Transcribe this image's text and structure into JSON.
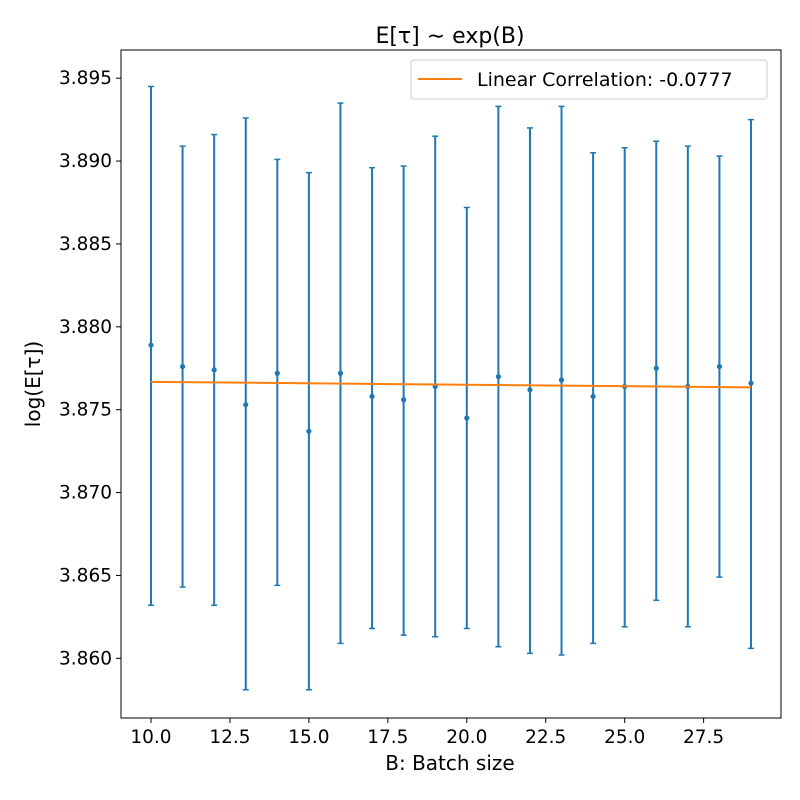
{
  "chart_data": {
    "type": "scatter",
    "title": "E[τ] ∼ exp(B)",
    "xlabel": "B: Batch size",
    "ylabel": "log(E[τ])",
    "xlim": [
      9.05,
      29.95
    ],
    "ylim": [
      3.8564,
      3.8967
    ],
    "x_ticks": [
      10.0,
      12.5,
      15.0,
      17.5,
      20.0,
      22.5,
      25.0,
      27.5
    ],
    "x_tick_labels": [
      "10.0",
      "12.5",
      "15.0",
      "17.5",
      "20.0",
      "22.5",
      "25.0",
      "27.5"
    ],
    "y_ticks": [
      3.86,
      3.865,
      3.87,
      3.875,
      3.88,
      3.885,
      3.89,
      3.895
    ],
    "y_tick_labels": [
      "3.860",
      "3.865",
      "3.870",
      "3.875",
      "3.880",
      "3.885",
      "3.890",
      "3.895"
    ],
    "grid": false,
    "legend_position": "top-right",
    "series": [
      {
        "kind": "errorbar",
        "color": "#1f77b4",
        "x": [
          10,
          11,
          12,
          13,
          14,
          15,
          16,
          17,
          18,
          19,
          20,
          21,
          22,
          23,
          24,
          25,
          26,
          27,
          28,
          29
        ],
        "y": [
          3.8789,
          3.8776,
          3.8774,
          3.8753,
          3.8772,
          3.8737,
          3.8772,
          3.8758,
          3.8756,
          3.8764,
          3.8745,
          3.877,
          3.8762,
          3.8768,
          3.8758,
          3.8764,
          3.8775,
          3.8764,
          3.8776,
          3.8766
        ],
        "y_low": [
          3.8632,
          3.8643,
          3.8632,
          3.8581,
          3.8644,
          3.8581,
          3.8609,
          3.8618,
          3.8614,
          3.8613,
          3.8618,
          3.8607,
          3.8603,
          3.8602,
          3.8609,
          3.8619,
          3.8635,
          3.8619,
          3.8649,
          3.8606
        ],
        "y_high": [
          3.8945,
          3.8909,
          3.8916,
          3.8926,
          3.8901,
          3.8893,
          3.8935,
          3.8896,
          3.8897,
          3.8915,
          3.8872,
          3.8933,
          3.892,
          3.8933,
          3.8905,
          3.8908,
          3.8912,
          3.8909,
          3.8903,
          3.8925
        ]
      },
      {
        "kind": "line",
        "name": "Linear Correlation: -0.0777",
        "color": "#ff7f0e",
        "x": [
          10,
          29
        ],
        "y": [
          3.87668,
          3.87635
        ]
      }
    ]
  }
}
